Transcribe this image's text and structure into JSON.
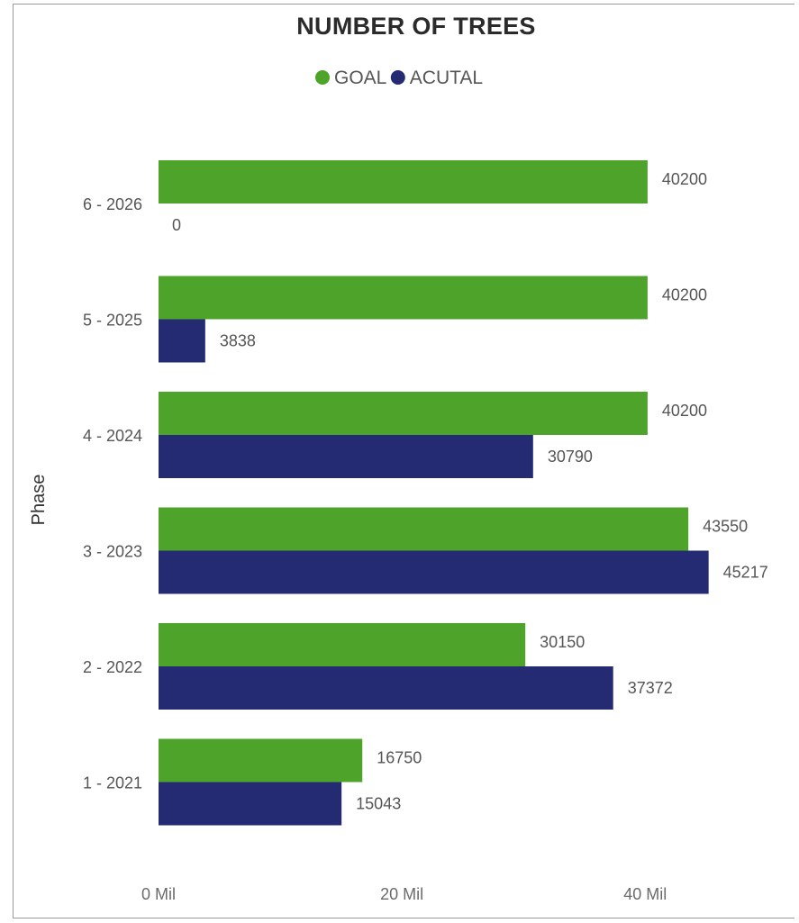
{
  "chart_data": {
    "type": "bar",
    "orientation": "horizontal",
    "title": "NUMBER OF TREES",
    "ylabel": "Phase",
    "xlabel": "",
    "categories": [
      "6 - 2026",
      "5 - 2025",
      "4 - 2024",
      "3 - 2023",
      "2 - 2022",
      "1 - 2021"
    ],
    "series": [
      {
        "name": "GOAL",
        "color": "#4ea32a",
        "values": [
          40200,
          40200,
          40200,
          43550,
          30150,
          16750
        ],
        "labels": [
          "40200",
          "40200",
          "40200",
          "43550",
          "30150",
          "16750"
        ]
      },
      {
        "name": "ACUTAL",
        "color": "#252b73",
        "values": [
          0,
          3838,
          30790,
          45217,
          37372,
          15043
        ],
        "labels": [
          "0",
          "3838",
          "30790",
          "45217",
          "37372",
          "15043"
        ]
      }
    ],
    "xticks": [
      "0 Mil",
      "20 Mil",
      "40 Mil"
    ],
    "xtick_values": [
      0,
      20000,
      40000
    ],
    "xlim": [
      0,
      48500
    ],
    "legend_position": "top-center",
    "grid": false
  }
}
